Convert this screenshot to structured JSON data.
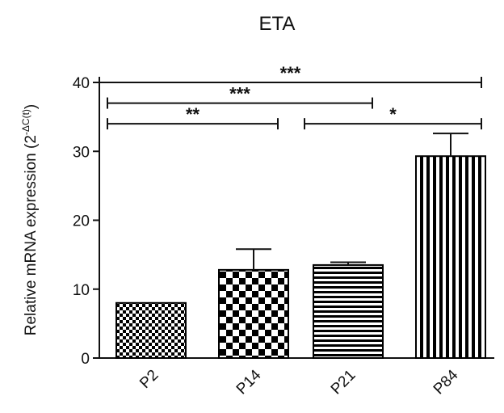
{
  "chart_data": {
    "type": "bar",
    "title": "ETA",
    "ylabel_main": "Relative mRNA expression (2",
    "ylabel_sup": "-ΔC(t)",
    "ylabel_close": ")",
    "xlabel": "",
    "categories": [
      "P2",
      "P14",
      "P21",
      "P84"
    ],
    "values": [
      8.0,
      12.8,
      13.5,
      29.3
    ],
    "errors": [
      0,
      3.0,
      0.4,
      3.3
    ],
    "patterns": [
      "checker-fine",
      "checker-coarse",
      "horizontal-stripes",
      "vertical-stripes"
    ],
    "ylim": [
      0,
      40
    ],
    "yticks": [
      0,
      10,
      20,
      30,
      40
    ],
    "grid": false,
    "bar_color": "#000000",
    "significance": [
      {
        "from": 0,
        "to": 3,
        "label": "***",
        "y": 40
      },
      {
        "from": 0,
        "to": 2,
        "label": "***",
        "y": 37
      },
      {
        "from": 0,
        "to": 1,
        "label": "**",
        "y": 34
      },
      {
        "from": 2,
        "to": 3,
        "label": "*",
        "y": 34
      }
    ]
  }
}
